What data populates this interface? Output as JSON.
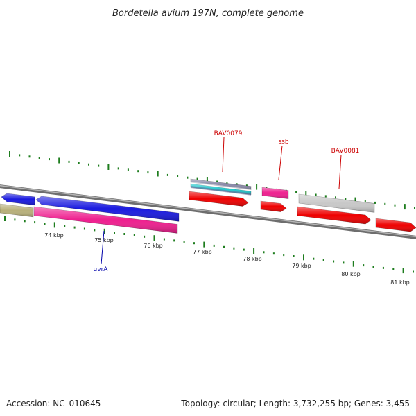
{
  "title": "Bordetella avium 197N, complete genome",
  "footer": {
    "accession": "Accession: NC_010645",
    "summary": "Topology: circular; Length: 3,732,255 bp; Genes: 3,455"
  },
  "colors": {
    "tick": "#1e7d1e",
    "backbone": "#8a8a8a",
    "label_red": "#cc0000",
    "label_blue": "#0000aa"
  },
  "ruler_kbp": [
    74,
    75,
    76,
    77,
    78,
    79,
    80,
    81
  ],
  "ruler_labels": [
    "74 kbp",
    "75 kbp",
    "76 kbp",
    "77 kbp",
    "78 kbp",
    "79 kbp",
    "80 kbp",
    "81 kbp"
  ],
  "features": [
    {
      "name": "gene-blue-a",
      "color": "#1a1adf",
      "dir": "rev"
    },
    {
      "name": "gene-blue-b",
      "color": "#1a1adf",
      "dir": "rev"
    },
    {
      "name": "gene-olive",
      "color": "#b8b07a",
      "dir": "none"
    },
    {
      "name": "gene-pink-a",
      "color": "#ee1e8e",
      "dir": "none"
    },
    {
      "name": "gene-grey-stack",
      "color": "#8a8aa8",
      "dir": "none"
    },
    {
      "name": "gene-teal",
      "color": "#22c8cc",
      "dir": "none"
    },
    {
      "name": "gene-red-a",
      "color": "#ee0000",
      "dir": "fwd"
    },
    {
      "name": "gene-pink-b",
      "color": "#ee1e8e",
      "dir": "none"
    },
    {
      "name": "gene-red-b",
      "color": "#ee0000",
      "dir": "fwd"
    },
    {
      "name": "gene-grey",
      "color": "#c8c8c8",
      "dir": "none"
    },
    {
      "name": "gene-red-c",
      "color": "#ee0000",
      "dir": "fwd"
    },
    {
      "name": "gene-red-d",
      "color": "#ee0000",
      "dir": "fwd"
    }
  ],
  "labels": [
    {
      "text": "BAV0079",
      "color": "#cc0000"
    },
    {
      "text": "ssb",
      "color": "#cc0000"
    },
    {
      "text": "BAV0081",
      "color": "#cc0000"
    },
    {
      "text": "uvrA",
      "color": "#0000aa"
    }
  ]
}
